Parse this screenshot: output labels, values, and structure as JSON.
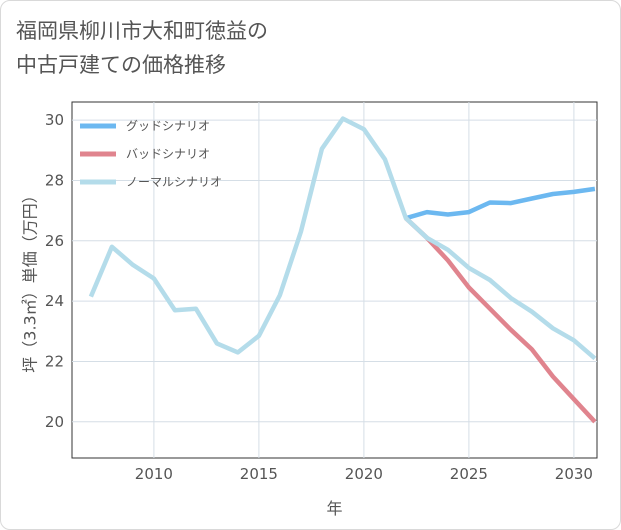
{
  "chart_data": {
    "type": "line",
    "title_lines": [
      "福岡県柳川市大和町徳益の",
      "中古戸建ての価格推移"
    ],
    "xlabel": "年",
    "ylabel": "坪（3.3㎡）単価（万円）",
    "xlim": [
      2006.1,
      2031.1
    ],
    "ylim": [
      18.8,
      30.6
    ],
    "x_ticks": [
      2010,
      2015,
      2020,
      2025,
      2030
    ],
    "y_ticks": [
      20,
      22,
      24,
      26,
      28,
      30
    ],
    "grid": true,
    "legend_position": "top-left",
    "series": [
      {
        "name": "グッドシナリオ",
        "color": "#6cb8f0",
        "x": [
          2022,
          2023,
          2024,
          2025,
          2026,
          2027,
          2028,
          2029,
          2030,
          2031
        ],
        "y": [
          26.75,
          26.95,
          26.87,
          26.95,
          27.27,
          27.25,
          27.4,
          27.55,
          27.62,
          27.72
        ]
      },
      {
        "name": "バッドシナリオ",
        "color": "#e0848e",
        "x": [
          2022,
          2023,
          2024,
          2025,
          2026,
          2027,
          2028,
          2029,
          2030,
          2031
        ],
        "y": [
          26.75,
          26.1,
          25.35,
          24.45,
          23.75,
          23.05,
          22.4,
          21.5,
          20.75,
          20.0
        ]
      },
      {
        "name": "ノーマルシナリオ",
        "color": "#b4dcea",
        "x": [
          2007,
          2008,
          2009,
          2010,
          2011,
          2012,
          2013,
          2014,
          2015,
          2016,
          2017,
          2018,
          2019,
          2020,
          2021,
          2022,
          2023,
          2024,
          2025,
          2026,
          2027,
          2028,
          2029,
          2030,
          2031
        ],
        "y": [
          24.15,
          25.8,
          25.2,
          24.75,
          23.7,
          23.75,
          22.6,
          22.3,
          22.85,
          24.2,
          26.3,
          29.05,
          30.05,
          29.7,
          28.7,
          26.75,
          26.1,
          25.7,
          25.1,
          24.7,
          24.1,
          23.65,
          23.1,
          22.7,
          22.1
        ]
      }
    ]
  }
}
